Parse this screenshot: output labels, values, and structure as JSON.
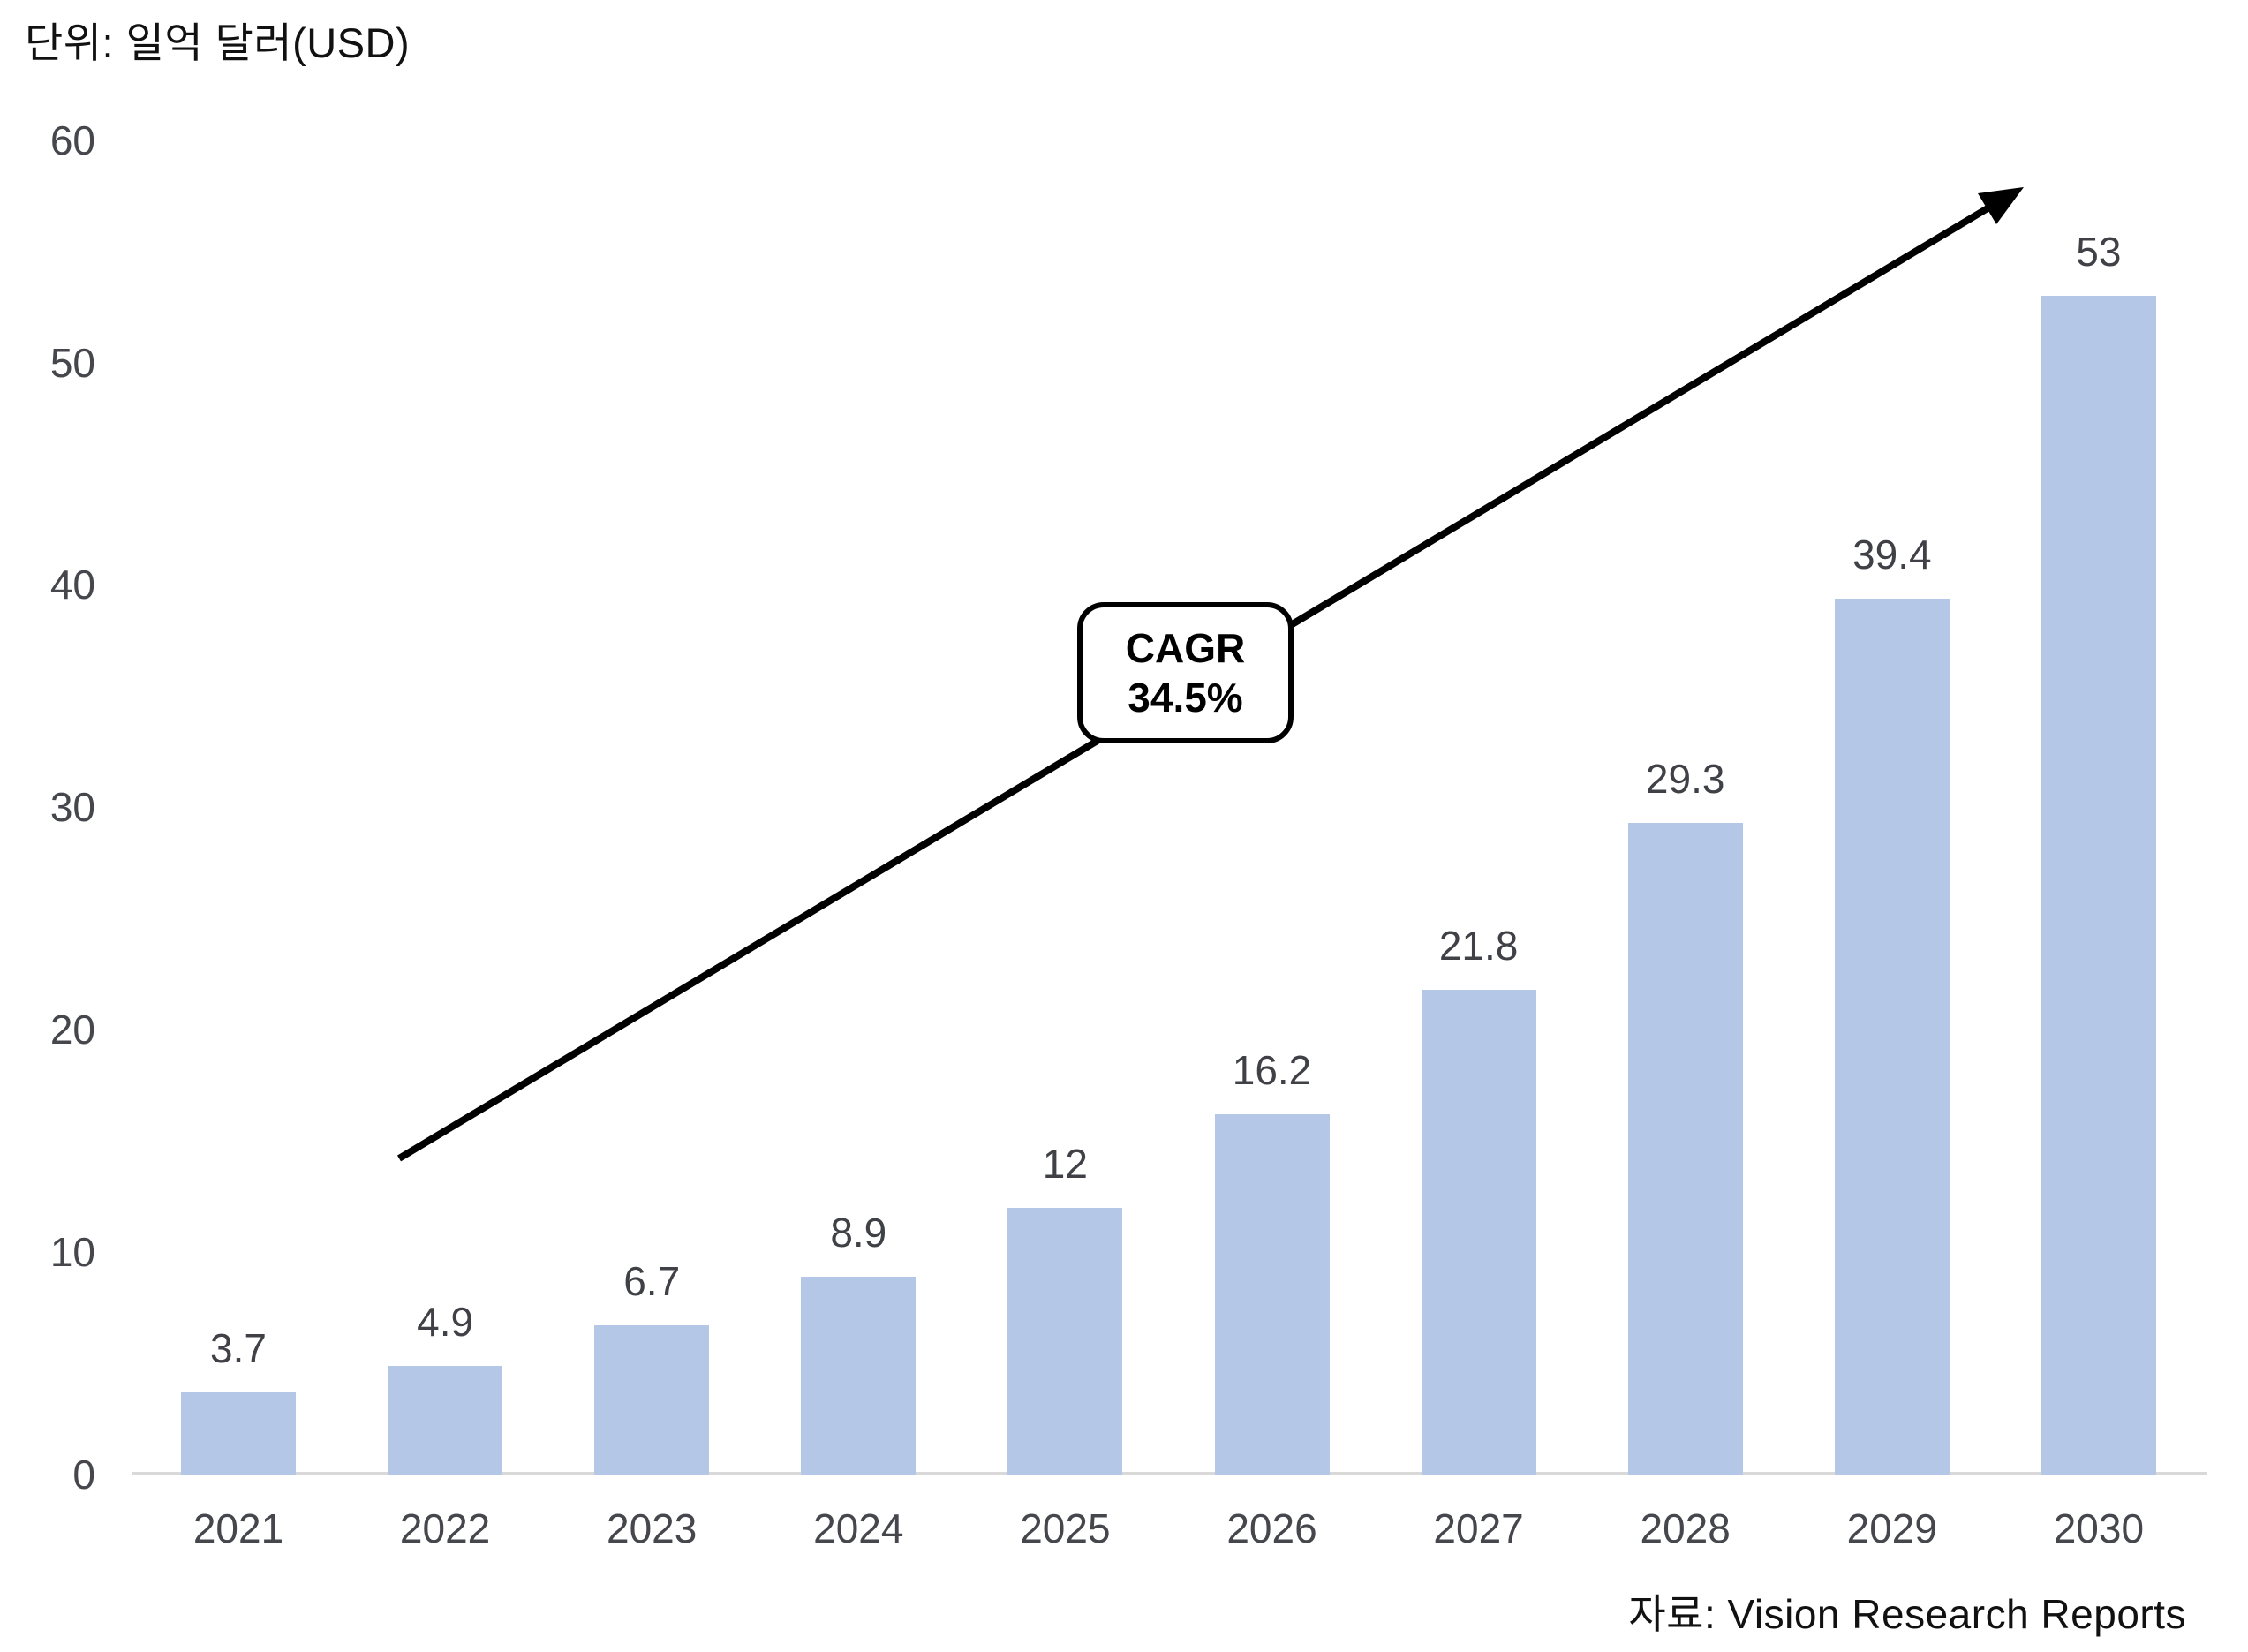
{
  "header": {
    "unit_label": "단위: 일억 달러(USD)"
  },
  "annotation": {
    "cagr_line1": "CAGR",
    "cagr_line2": "34.5%"
  },
  "footer": {
    "source_label": "자료: Vision Research Reports"
  },
  "chart_data": {
    "type": "bar",
    "title": "단위: 일억 달러(USD)",
    "categories": [
      "2021",
      "2022",
      "2023",
      "2024",
      "2025",
      "2026",
      "2027",
      "2028",
      "2029",
      "2030"
    ],
    "values": [
      3.7,
      4.9,
      6.7,
      8.9,
      12,
      16.2,
      21.8,
      29.3,
      39.4,
      53
    ],
    "value_labels": [
      "3.7",
      "4.9",
      "6.7",
      "8.9",
      "12",
      "16.2",
      "21.8",
      "29.3",
      "39.4",
      "53"
    ],
    "xlabel": "",
    "ylabel": "",
    "ylim": [
      0,
      60
    ],
    "y_ticks": [
      0,
      10,
      20,
      30,
      40,
      50,
      60
    ],
    "grid": false,
    "legend": "none",
    "annotation_text": "CAGR 34.5%",
    "source": "자료: Vision Research Reports",
    "colors": {
      "bar_fill": "#B4C7E7",
      "tick_label": "#45474d",
      "data_label": "#3f4147",
      "axis_line": "#d9d9d9",
      "arrow": "#000000",
      "annotation_border": "#000000",
      "annotation_fill": "#ffffff",
      "title_text": "#111111"
    }
  }
}
